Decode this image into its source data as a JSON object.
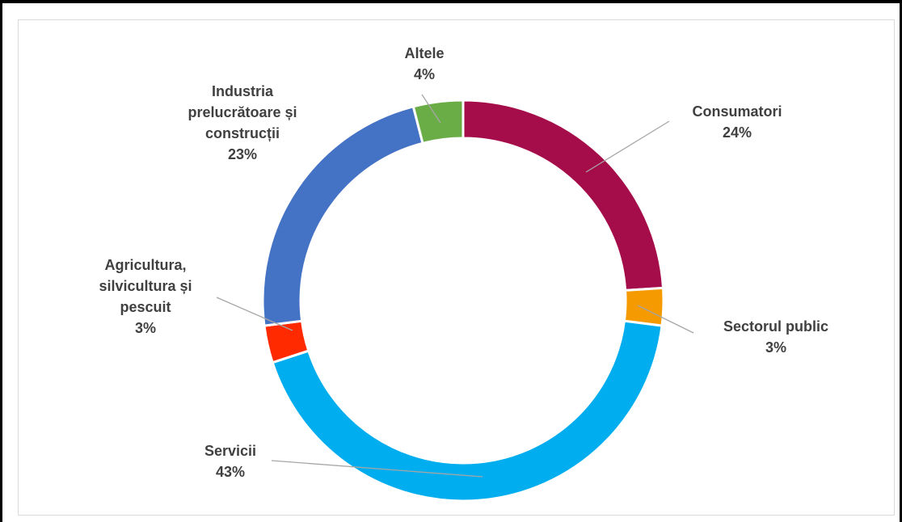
{
  "chart_data": {
    "type": "donut",
    "title": "",
    "legend": "none",
    "slices": [
      {
        "name": "Consumatori",
        "label_lines": [
          "Consumatori"
        ],
        "percent_label": "24%",
        "value": 24,
        "color": "#a50d4a"
      },
      {
        "name": "Sectorul public",
        "label_lines": [
          "Sectorul public"
        ],
        "percent_label": "3%",
        "value": 3,
        "color": "#f59a00"
      },
      {
        "name": "Servicii",
        "label_lines": [
          "Servicii"
        ],
        "percent_label": "43%",
        "value": 43,
        "color": "#00adef"
      },
      {
        "name": "Agricultura, silvicultura și pescuit",
        "label_lines": [
          "Agricultura,",
          "silvicultura  și",
          "pescuit"
        ],
        "percent_label": "3%",
        "value": 3,
        "color": "#ff2a00"
      },
      {
        "name": "Industria prelucrătoare și construcții",
        "label_lines": [
          "Industria",
          "prelucrătoare  și",
          "construcții"
        ],
        "percent_label": "23%",
        "value": 23,
        "color": "#4472c4"
      },
      {
        "name": "Altele",
        "label_lines": [
          "Altele"
        ],
        "percent_label": "4%",
        "value": 4,
        "color": "#6aad46"
      }
    ]
  }
}
